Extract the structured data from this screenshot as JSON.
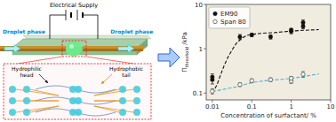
{
  "chart_data": {
    "type": "scatter",
    "xlabel": "Concentration of surfactant/ %",
    "ylabel": "Πthreshold /kPa",
    "log": true,
    "xlim": [
      0.007,
      10
    ],
    "ylim": [
      0.07,
      10
    ],
    "xticks": [
      0.01,
      0.1,
      1,
      10
    ],
    "yticks": [
      0.1,
      1,
      10
    ],
    "grid": false,
    "legend": "upper left",
    "background_color": "#f0ece0",
    "annotations": [
      "Electrical Supply",
      "Droplet phase",
      "Droplet phase",
      "Hydrophilic\nhead",
      "Hydrophobic\ntail"
    ],
    "series": [
      {
        "type": "line",
        "line_style": "dashed",
        "color": "#111111",
        "x": [
          0.01,
          0.013,
          0.016,
          0.02,
          0.025,
          0.032,
          0.04,
          0.055,
          0.075,
          0.1,
          0.15,
          0.2,
          0.35,
          0.6,
          1.0,
          2.0,
          5.0
        ],
        "values": [
          0.1,
          0.15,
          0.25,
          0.42,
          0.65,
          0.95,
          1.3,
          1.7,
          2.0,
          2.1,
          2.2,
          2.25,
          2.3,
          2.4,
          2.5,
          2.6,
          2.7
        ]
      },
      {
        "type": "line",
        "line_style": "dashed",
        "color": "#4ab8cc",
        "x": [
          0.01,
          0.02,
          0.04,
          0.07,
          0.1,
          0.2,
          0.4,
          0.7,
          1.0,
          2.0,
          5.0
        ],
        "values": [
          0.108,
          0.122,
          0.138,
          0.158,
          0.172,
          0.188,
          0.198,
          0.208,
          0.213,
          0.235,
          0.27
        ]
      },
      {
        "type": "scatter",
        "name": "EM90",
        "marker": "circle",
        "color": "#111111",
        "x": [
          0.01,
          0.01,
          0.05,
          0.1,
          0.3,
          1.0,
          1.0,
          2.0,
          2.0
        ],
        "values": [
          0.2,
          0.23,
          1.85,
          2.05,
          1.85,
          2.45,
          2.65,
          3.2,
          3.9
        ],
        "errors": [
          0.04,
          0.04,
          0.25,
          0.18,
          0.2,
          0.28,
          0.22,
          0.38,
          0.55
        ]
      },
      {
        "type": "scatter",
        "name": "Span 80",
        "marker": "open-circle",
        "color": "#555555",
        "x": [
          0.01,
          0.05,
          0.1,
          0.3,
          1.0,
          1.0,
          2.0
        ],
        "values": [
          0.11,
          0.155,
          0.19,
          0.2,
          0.185,
          0.215,
          0.265
        ],
        "errors": [
          0.015,
          0.015,
          0.02,
          0.02,
          0.02,
          0.02,
          0.04
        ]
      }
    ]
  }
}
